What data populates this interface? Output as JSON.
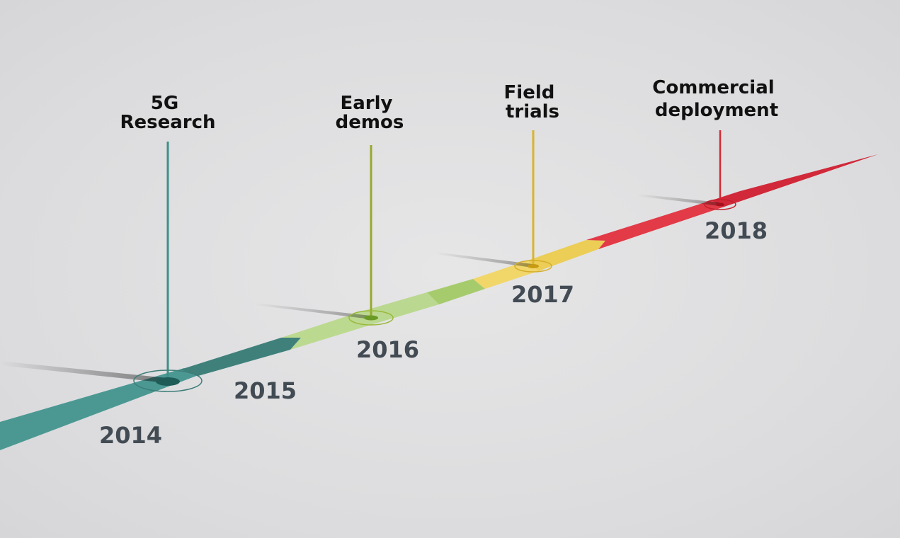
{
  "milestones": [
    {
      "title_line1": "5G",
      "title_line2": "Research",
      "color": "#3f8f8a"
    },
    {
      "title_line1": "Early",
      "title_line2": "demos",
      "color": "#98a82c"
    },
    {
      "title_line1": "Field",
      "title_line2": "trials",
      "color": "#d9b431"
    },
    {
      "title_line1": "Commercial",
      "title_line2": "deployment",
      "color": "#d42a35"
    }
  ],
  "years": [
    "2014",
    "2015",
    "2016",
    "2017",
    "2018"
  ],
  "colors": {
    "teal": "#4a9690",
    "teal_dark": "#3d7d78",
    "green_light": "#bad88f",
    "green": "#a5ca6c",
    "yellow": "#f1d66a",
    "yellow_dark": "#eccc52",
    "red": "#e23845",
    "red_dark": "#cf2432",
    "year_text": "#424b53"
  }
}
